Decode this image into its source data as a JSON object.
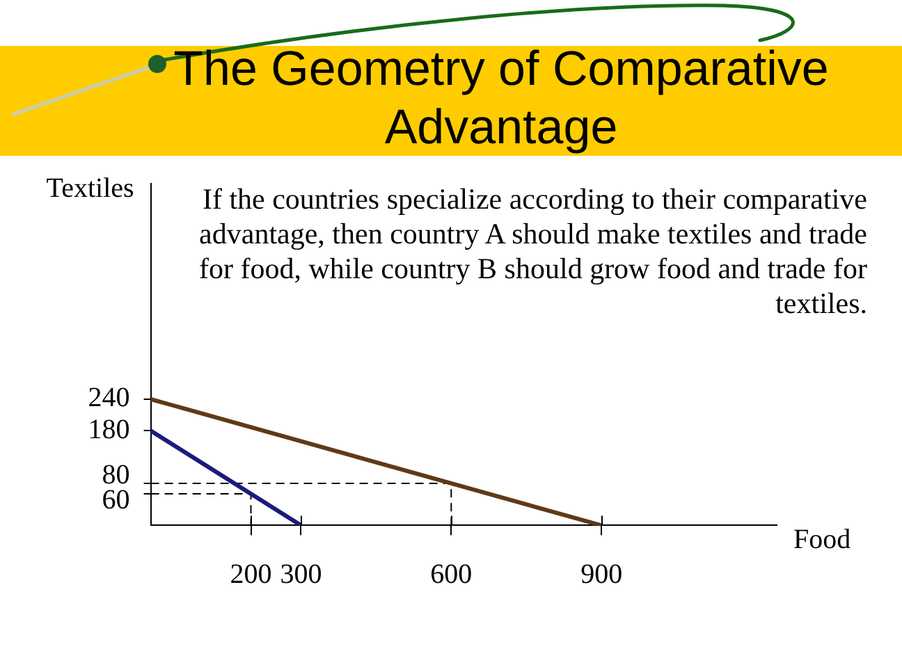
{
  "chart_data": {
    "type": "line",
    "title": "The Geometry of Comparative Advantage",
    "xlabel": "Food",
    "ylabel": "Textiles",
    "annotations": [
      "If the countries specialize according to their comparative advantage, then country A should make textiles and trade for food, while country B should grow food and trade for textiles."
    ],
    "series": [
      {
        "color": "#5e3a17",
        "x": [
          0,
          900
        ],
        "values": [
          240,
          0
        ]
      },
      {
        "color": "#1b1b7d",
        "x": [
          0,
          300
        ],
        "values": [
          180,
          0
        ]
      },
      {
        "color": "#000000",
        "line_style": "dashed",
        "x": [
          0,
          200,
          200
        ],
        "values": [
          60,
          60,
          0
        ]
      },
      {
        "color": "#000000",
        "line_style": "dashed",
        "x": [
          0,
          600,
          600
        ],
        "values": [
          80,
          80,
          0
        ]
      }
    ],
    "xlim": [
      0,
      1250
    ],
    "ylim": [
      0,
      650
    ],
    "xticks": [
      200,
      300,
      600,
      900
    ],
    "yticks": [
      60,
      80,
      180,
      240
    ]
  }
}
